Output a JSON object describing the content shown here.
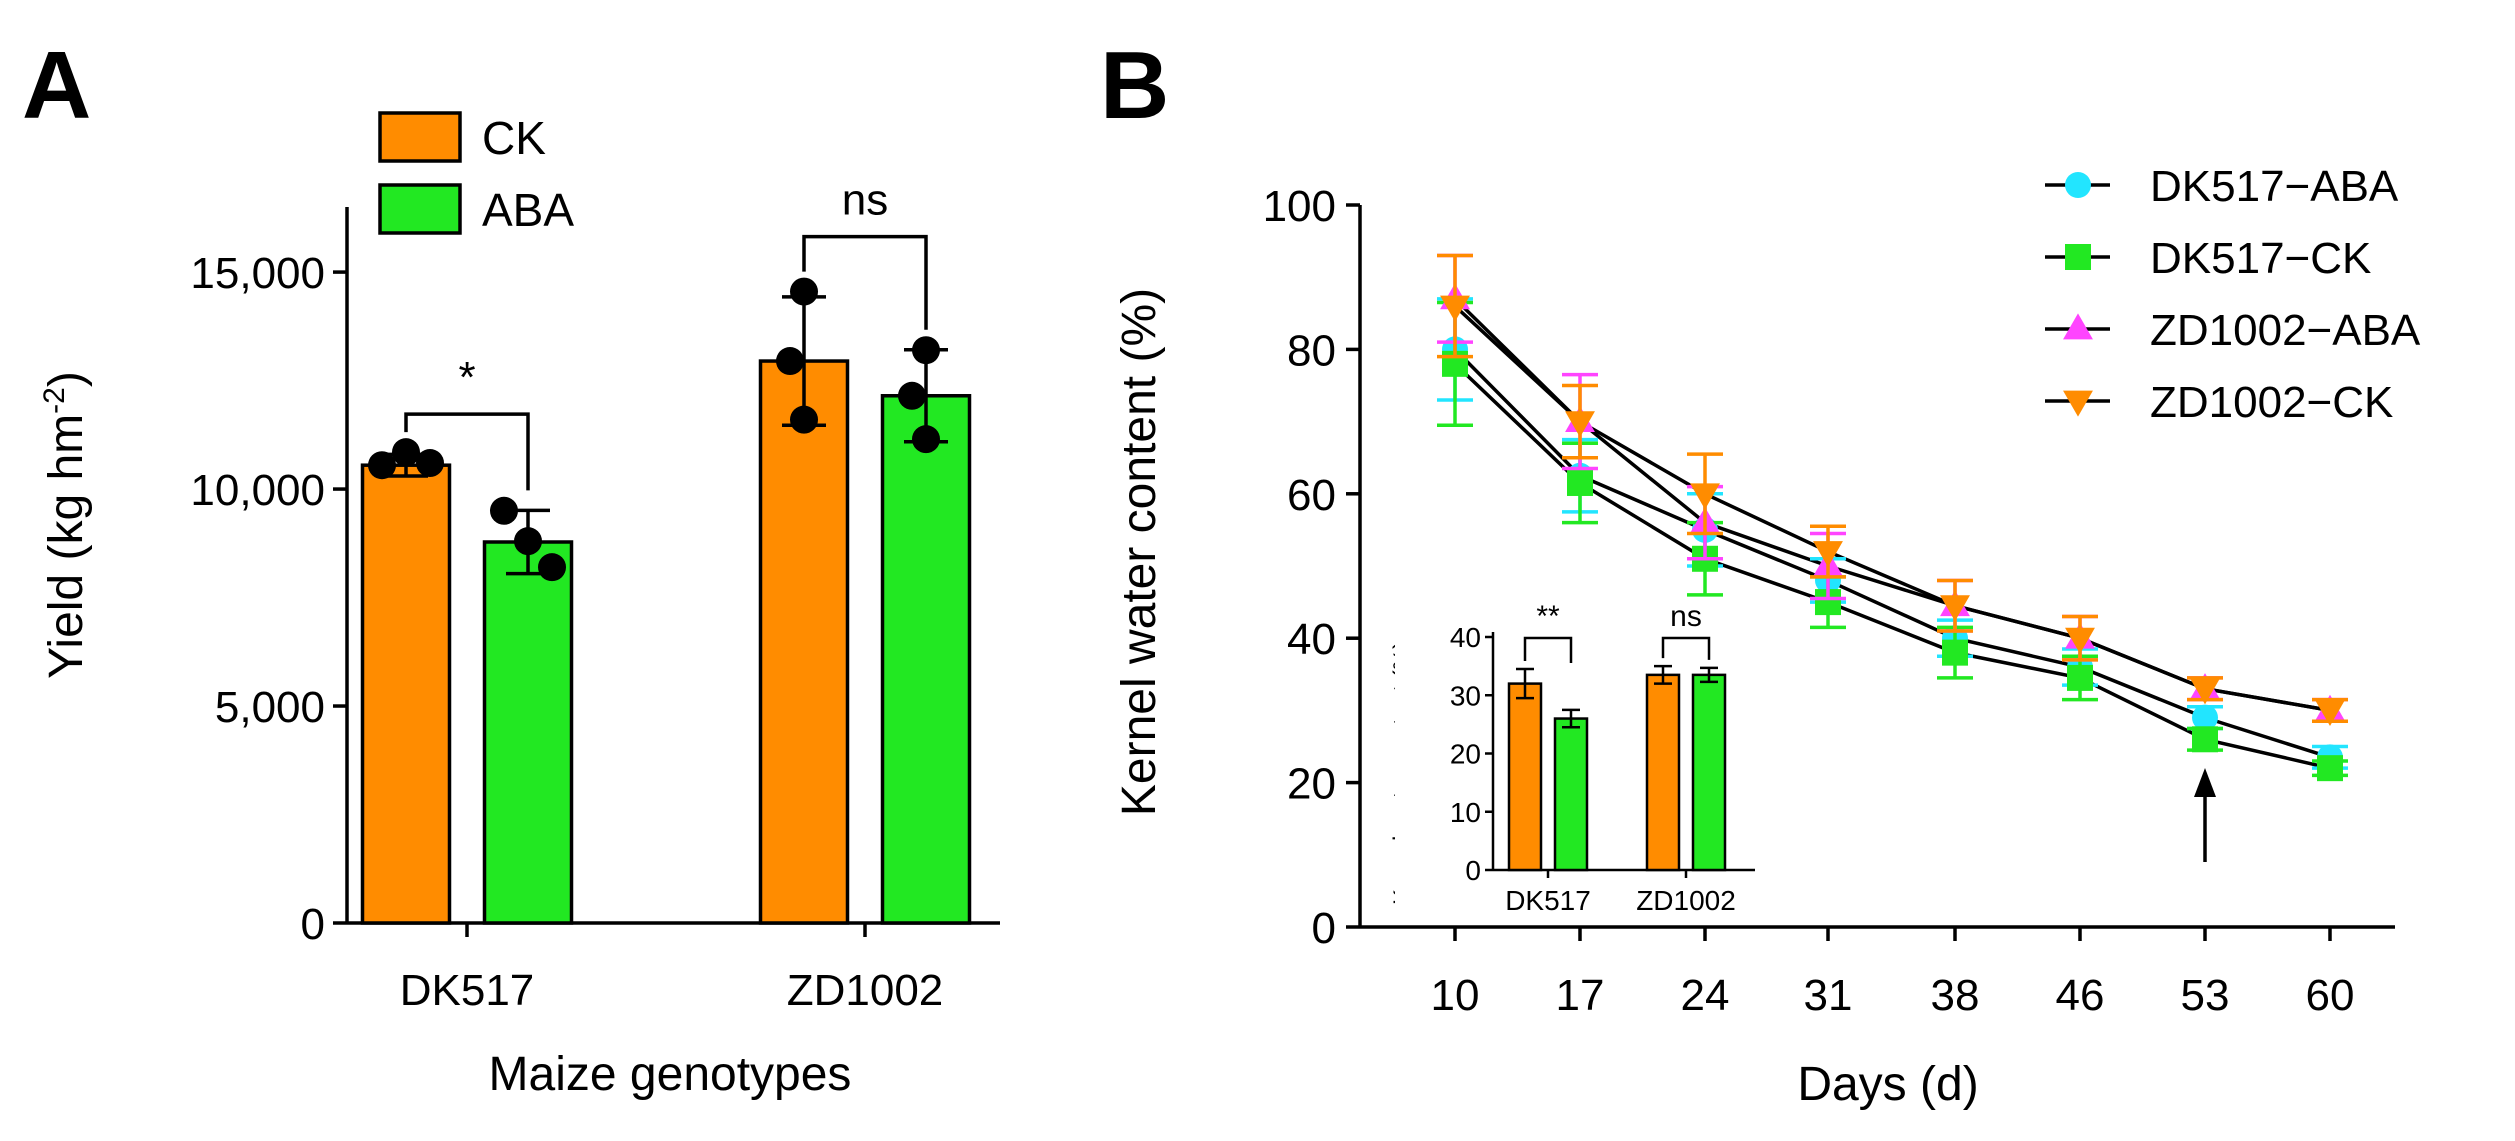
{
  "chart_data": [
    {
      "type": "bar",
      "panel_label": "A",
      "title": "",
      "xlabel": "Maize genotypes",
      "ylabel": "Yield (kg hm",
      "ylabel_sup": "-2",
      "ylabel_end": ")",
      "ylim": [
        0,
        16500
      ],
      "yticks": [
        0,
        5000,
        10000,
        15000
      ],
      "ytick_labels": [
        "0",
        "5,000",
        "10,000",
        "15,000"
      ],
      "categories": [
        "DK517",
        "ZD1002"
      ],
      "series": [
        {
          "name": "CK",
          "color": "#FF8C00",
          "values": [
            10550,
            12950
          ],
          "sd": [
            250,
            1480
          ],
          "replicates": [
            [
              10550,
              10850,
              10600
            ],
            [
              14550,
              12950,
              11600
            ]
          ]
        },
        {
          "name": "ABA",
          "color": "#22E822",
          "values": [
            8780,
            12150
          ],
          "sd": [
            730,
            1060
          ],
          "replicates": [
            [
              9500,
              8800,
              8200
            ],
            [
              13200,
              12150,
              11150
            ]
          ]
        }
      ],
      "significance": [
        {
          "category": "DK517",
          "label": "*"
        },
        {
          "category": "ZD1002",
          "label": "ns"
        }
      ],
      "legend": {
        "position": "top-left",
        "entries": [
          "CK",
          "ABA"
        ]
      }
    },
    {
      "type": "line",
      "panel_label": "B",
      "title": "",
      "xlabel": "Days (d)",
      "ylabel": "Kernel water content (%)",
      "ylim": [
        0,
        100
      ],
      "yticks": [
        0,
        20,
        40,
        60,
        80,
        100
      ],
      "x": [
        10,
        17,
        24,
        31,
        38,
        46,
        53,
        60
      ],
      "series": [
        {
          "name": "DK517−ABA",
          "color": "#22E5FF",
          "marker": "circle",
          "values": [
            80,
            62.5,
            55,
            48,
            40,
            36,
            29,
            23.5
          ],
          "sd": [
            7,
            5,
            5,
            3,
            2.5,
            2.5,
            1.5,
            1.5
          ]
        },
        {
          "name": "DK517−CK",
          "color": "#22E822",
          "marker": "square",
          "values": [
            78,
            61.5,
            51,
            45,
            38,
            34.5,
            26,
            22
          ],
          "sd": [
            8.5,
            5.5,
            5,
            3.5,
            3.5,
            3,
            1.5,
            1
          ]
        },
        {
          "name": "ZD1002−ABA",
          "color": "#FF44FF",
          "marker": "triangle-up",
          "values": [
            87,
            70,
            56,
            50,
            44.5,
            40,
            33,
            30
          ],
          "sd": [
            6,
            6.5,
            5,
            4.5,
            3.5,
            3,
            1.5,
            1.5
          ]
        },
        {
          "name": "ZD1002−CK",
          "color": "#FF8C00",
          "marker": "triangle-down",
          "values": [
            86,
            70,
            60,
            52,
            44.5,
            40,
            33,
            30
          ],
          "sd": [
            7,
            5,
            5.5,
            3.5,
            3.5,
            3,
            1.5,
            1.5
          ]
        }
      ],
      "annotations": [
        {
          "type": "arrow",
          "x": 53,
          "text": ""
        }
      ],
      "legend": {
        "position": "top-right",
        "entries": [
          "DK517−ABA",
          "DK517−CK",
          "ZD1002−ABA",
          "ZD1002−CK"
        ]
      }
    },
    {
      "type": "bar",
      "panel_label": "B-inset",
      "title": "",
      "xlabel": "",
      "ylabel": "Kernel water content (%)",
      "ylim": [
        0,
        40
      ],
      "yticks": [
        0,
        10,
        20,
        30,
        40
      ],
      "categories": [
        "DK517",
        "ZD1002"
      ],
      "series": [
        {
          "name": "CK",
          "color": "#FF8C00",
          "values": [
            32,
            33.5
          ],
          "sd": [
            2.5,
            1.5
          ]
        },
        {
          "name": "ABA",
          "color": "#22E822",
          "values": [
            26,
            33.5
          ],
          "sd": [
            1.5,
            1.2
          ]
        }
      ],
      "significance": [
        {
          "category": "DK517",
          "label": "**"
        },
        {
          "category": "ZD1002",
          "label": "ns"
        }
      ]
    }
  ]
}
